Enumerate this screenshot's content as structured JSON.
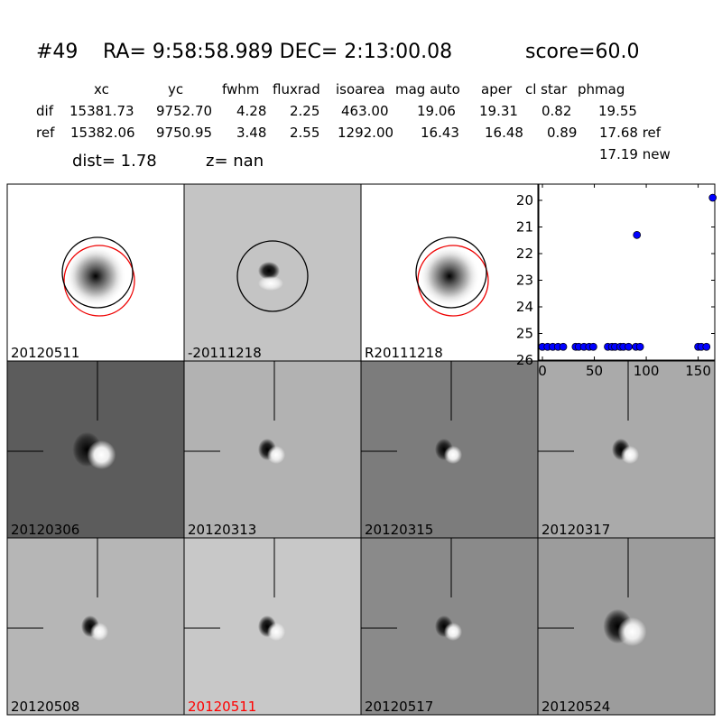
{
  "header": {
    "id": "#49",
    "coords": "RA= 9:58:58.989 DEC= 2:13:00.08",
    "score": "score=60.0"
  },
  "table": {
    "columns": [
      "xc",
      "yc",
      "fwhm",
      "fluxrad",
      "isoarea",
      "mag auto",
      "aper",
      "cl star",
      "phmag"
    ],
    "rows": [
      {
        "label": "dif",
        "cells": [
          "15381.73",
          "9752.70",
          "4.28",
          "2.25",
          "463.00",
          "19.06",
          "19.31",
          "0.82",
          "19.55"
        ]
      },
      {
        "label": "ref",
        "cells": [
          "15382.06",
          "9750.95",
          "3.48",
          "2.55",
          "1292.00",
          "16.43",
          "16.48",
          "0.89",
          "17.68 ref"
        ]
      }
    ],
    "extra": "17.19 new"
  },
  "summary": {
    "dist": "dist=  1.78",
    "z": "z=   nan"
  },
  "panels": [
    {
      "label": "20120511"
    },
    {
      "label": "-20111218"
    },
    {
      "label": "R20111218"
    },
    {
      "label": "20120306"
    },
    {
      "label": "20120313"
    },
    {
      "label": "20120315"
    },
    {
      "label": "20120317"
    },
    {
      "label": "20120508"
    },
    {
      "label": "20120511",
      "color": "#ff0000"
    },
    {
      "label": "20120517"
    },
    {
      "label": "20120524"
    }
  ],
  "chart_data": {
    "type": "scatter",
    "color": "#0000ff",
    "x": [
      0,
      5,
      10,
      15,
      20,
      32,
      35,
      40,
      45,
      49,
      63,
      67,
      70,
      75,
      78,
      83,
      90,
      91,
      94,
      150,
      153,
      158,
      164
    ],
    "values": [
      25.5,
      25.5,
      25.5,
      25.5,
      25.5,
      25.5,
      25.5,
      25.5,
      25.5,
      25.5,
      25.5,
      25.5,
      25.5,
      25.5,
      25.5,
      25.5,
      25.5,
      21.3,
      25.5,
      25.5,
      25.5,
      25.5,
      19.9
    ],
    "xlim": [
      -3.5,
      166
    ],
    "ylim": [
      26,
      19.39
    ],
    "xticks": [
      0,
      50,
      100,
      150
    ],
    "yticks": [
      20,
      21,
      22,
      23,
      24,
      25,
      26
    ]
  }
}
